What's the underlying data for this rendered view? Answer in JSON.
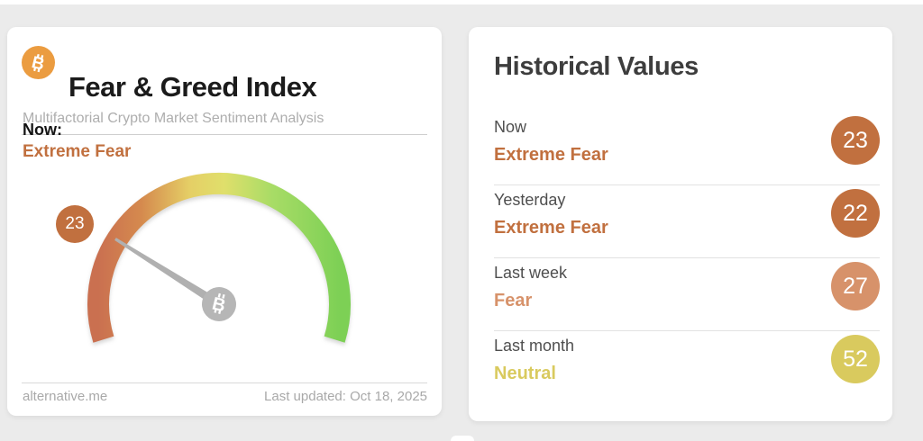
{
  "page": {
    "background_color": "#ebebeb"
  },
  "left_card": {
    "title": "Fear & Greed Index",
    "subtitle": "Multifactorial Crypto Market Sentiment Analysis",
    "now_label": "Now:",
    "now_value": "Extreme Fear",
    "accent_color": "#c1703f",
    "bitcoin_icon_color": "#eb9c40",
    "footer_source": "alternative.me",
    "footer_updated": "Last updated: Oct 18, 2025"
  },
  "right_card": {
    "title": "Historical Values",
    "rows": [
      {
        "label": "Now",
        "sentiment": "Extreme Fear",
        "value": "23",
        "color": "#c1703f"
      },
      {
        "label": "Yesterday",
        "sentiment": "Extreme Fear",
        "value": "22",
        "color": "#c1703f"
      },
      {
        "label": "Last week",
        "sentiment": "Fear",
        "value": "27",
        "color": "#d7926a"
      },
      {
        "label": "Last month",
        "sentiment": "Neutral",
        "value": "52",
        "color": "#d9ca5e"
      }
    ]
  },
  "chart_data": {
    "type": "gauge",
    "title": "Fear & Greed Index",
    "value": 23,
    "min": 0,
    "max": 100,
    "sentiment": "Extreme Fear",
    "arc_sweep_degrees": 214,
    "needle_color": "#b0b0b0",
    "hub_color": "#b6b6b6",
    "color_scale": [
      "#ca7050",
      "#d58a4e",
      "#e5cf66",
      "#e0df6b",
      "#a8dc66",
      "#7dd055"
    ],
    "historical": [
      {
        "period": "Now",
        "sentiment": "Extreme Fear",
        "value": 23
      },
      {
        "period": "Yesterday",
        "sentiment": "Extreme Fear",
        "value": 22
      },
      {
        "period": "Last week",
        "sentiment": "Fear",
        "value": 27
      },
      {
        "period": "Last month",
        "sentiment": "Neutral",
        "value": 52
      }
    ]
  }
}
